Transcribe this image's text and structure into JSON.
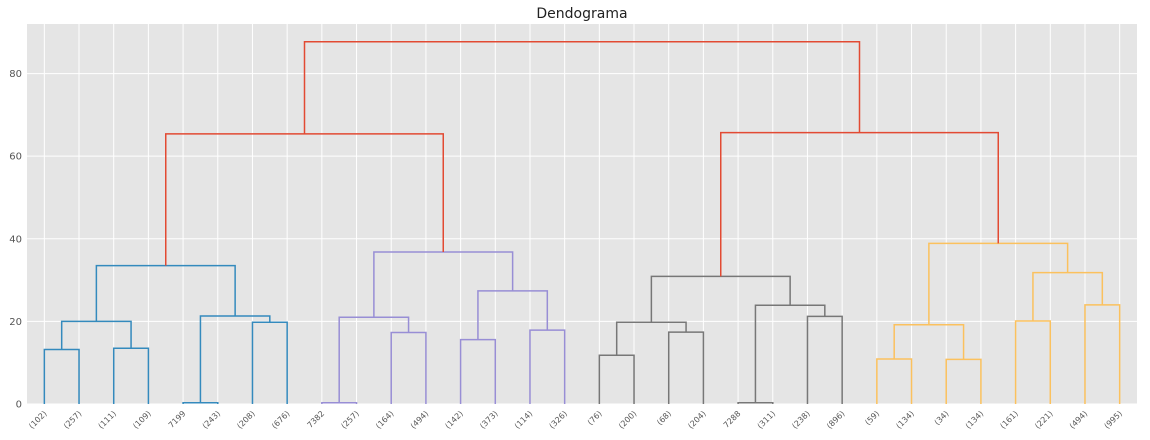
{
  "chart_data": {
    "type": "dendrogram",
    "title": "Dendograma",
    "ylim": [
      0,
      92
    ],
    "yticks": [
      0,
      20,
      40,
      60,
      80
    ],
    "grid": true,
    "colors": {
      "background": "#e5e5e5",
      "grid": "#ffffff",
      "root": "#e24a33",
      "cluster1": "#348abd",
      "cluster2": "#988ed5",
      "cluster3": "#777777",
      "cluster4": "#fbc15e"
    },
    "leaves": [
      "(102)",
      "(257)",
      "(111)",
      "(109)",
      "7199",
      "(243)",
      "(208)",
      "(676)",
      "7382",
      "(257)",
      "(164)",
      "(494)",
      "(142)",
      "(373)",
      "(114)",
      "(326)",
      "(76)",
      "(200)",
      "(68)",
      "(204)",
      "7288",
      "(311)",
      "(238)",
      "(896)",
      "(59)",
      "(134)",
      "(34)",
      "(134)",
      "(161)",
      "(221)",
      "(494)",
      "(995)"
    ],
    "links": [
      {
        "left": 0,
        "right": 1,
        "height": 13.2,
        "color": "cluster1"
      },
      {
        "left": 2,
        "right": 3,
        "height": 13.5,
        "color": "cluster1"
      },
      {
        "left": 32,
        "right": 33,
        "height": 20.0,
        "color": "cluster1"
      },
      {
        "left": 4,
        "right": 5,
        "height": 0.3,
        "color": "cluster1"
      },
      {
        "left": 6,
        "right": 7,
        "height": 19.8,
        "color": "cluster1"
      },
      {
        "left": 35,
        "right": 36,
        "height": 21.3,
        "color": "cluster1"
      },
      {
        "left": 34,
        "right": 37,
        "height": 33.5,
        "color": "cluster1"
      },
      {
        "left": 8,
        "right": 9,
        "height": 0.3,
        "color": "cluster2"
      },
      {
        "left": 10,
        "right": 11,
        "height": 17.3,
        "color": "cluster2"
      },
      {
        "left": 39,
        "right": 40,
        "height": 21.0,
        "color": "cluster2"
      },
      {
        "left": 12,
        "right": 13,
        "height": 15.6,
        "color": "cluster2"
      },
      {
        "left": 14,
        "right": 15,
        "height": 17.9,
        "color": "cluster2"
      },
      {
        "left": 42,
        "right": 43,
        "height": 27.4,
        "color": "cluster2"
      },
      {
        "left": 41,
        "right": 44,
        "height": 36.8,
        "color": "cluster2"
      },
      {
        "left": 38,
        "right": 45,
        "height": 65.4,
        "color": "root"
      },
      {
        "left": 16,
        "right": 17,
        "height": 11.8,
        "color": "cluster3"
      },
      {
        "left": 18,
        "right": 19,
        "height": 17.4,
        "color": "cluster3"
      },
      {
        "left": 47,
        "right": 48,
        "height": 19.8,
        "color": "cluster3"
      },
      {
        "left": 20,
        "right": 21,
        "height": 0.3,
        "color": "cluster3"
      },
      {
        "left": 22,
        "right": 23,
        "height": 21.2,
        "color": "cluster3"
      },
      {
        "left": 50,
        "right": 51,
        "height": 23.9,
        "color": "cluster3"
      },
      {
        "left": 49,
        "right": 52,
        "height": 30.9,
        "color": "cluster3"
      },
      {
        "left": 24,
        "right": 25,
        "height": 10.9,
        "color": "cluster4"
      },
      {
        "left": 26,
        "right": 27,
        "height": 10.8,
        "color": "cluster4"
      },
      {
        "left": 54,
        "right": 55,
        "height": 19.2,
        "color": "cluster4"
      },
      {
        "left": 28,
        "right": 29,
        "height": 20.1,
        "color": "cluster4"
      },
      {
        "left": 30,
        "right": 31,
        "height": 24.0,
        "color": "cluster4"
      },
      {
        "left": 57,
        "right": 58,
        "height": 31.8,
        "color": "cluster4"
      },
      {
        "left": 56,
        "right": 59,
        "height": 38.9,
        "color": "cluster4"
      },
      {
        "left": 53,
        "right": 60,
        "height": 65.7,
        "color": "root"
      },
      {
        "left": 46,
        "right": 61,
        "height": 87.7,
        "color": "root"
      }
    ]
  }
}
